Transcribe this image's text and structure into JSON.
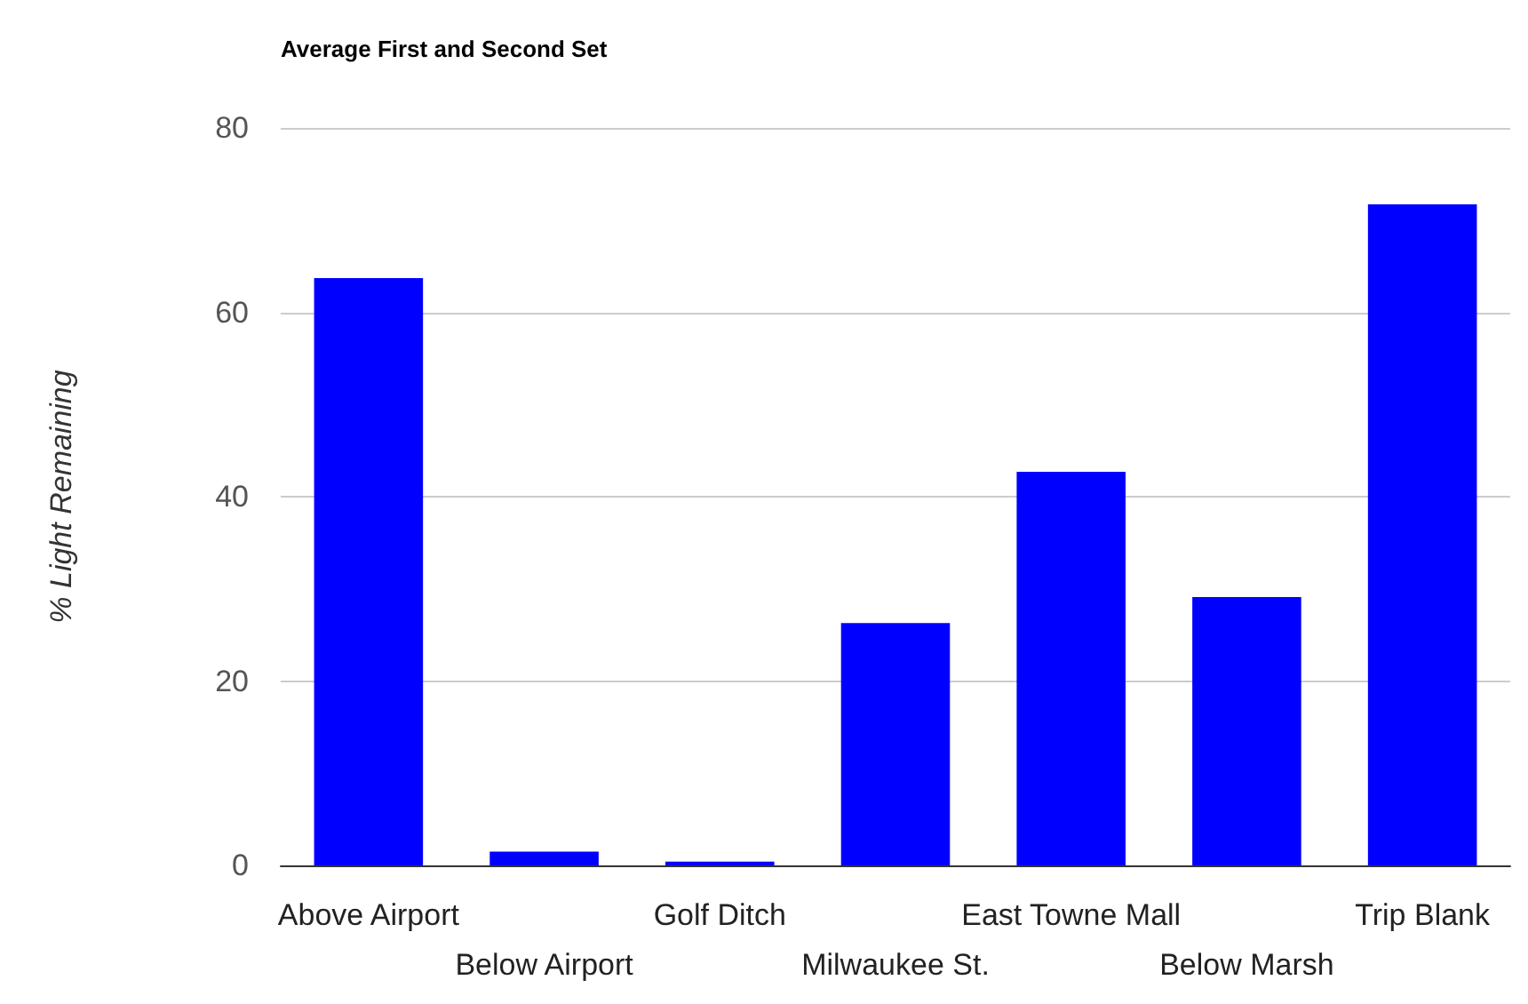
{
  "chart_data": {
    "type": "bar",
    "title": "Average First and Second Set",
    "ylabel": "% Light Remaining",
    "categories": [
      "Above Airport",
      "Below Airport",
      "Golf Ditch",
      "Milwaukee St.",
      "East Towne Mall",
      "Below Marsh",
      "Trip Blank"
    ],
    "values": [
      63.7,
      1.5,
      0.4,
      26.3,
      42.7,
      29.1,
      71.7
    ],
    "color": "#0000ff",
    "ylim": [
      0,
      80
    ],
    "yticks": [
      0,
      20,
      40,
      60,
      80
    ],
    "grid": "y"
  }
}
